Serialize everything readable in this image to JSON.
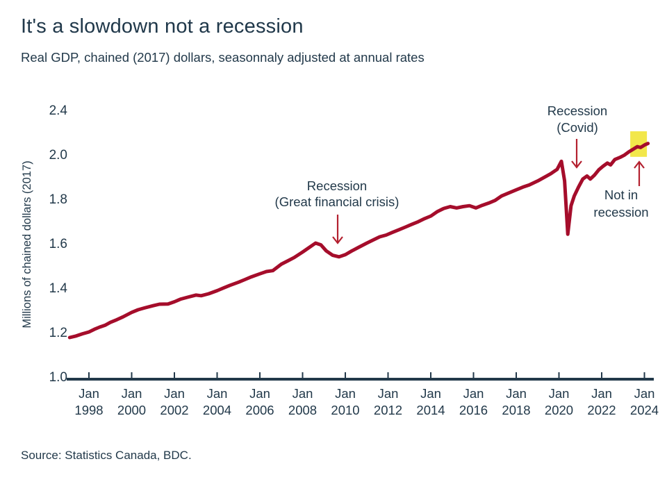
{
  "header": {
    "title": "It's a slowdown not a recession",
    "subtitle": "Real GDP, chained (2017) dollars, seasonnaly adjusted at annual rates"
  },
  "footer": {
    "source": "Source: Statistics Canada, BDC."
  },
  "colors": {
    "text": "#22394a",
    "line": "#a50d2b",
    "arrow": "#b3202f",
    "highlight": "#f2e74b",
    "axis": "#22394a"
  },
  "chart_data": {
    "type": "line",
    "title": "It's a slowdown not a recession",
    "subtitle": "Real GDP, chained (2017) dollars, seasonnaly adjusted at annual rates",
    "ylabel": "Millions of chained dollars (2017)",
    "xlabel": "",
    "grid": false,
    "legend": "none",
    "y_ticks": [
      1.0,
      1.2,
      1.4,
      1.6,
      1.8,
      2.0,
      2.4
    ],
    "y_tick_labels": [
      "1.0",
      "1.2",
      "1.4",
      "1.6",
      "1.8",
      "2.0",
      "2.4"
    ],
    "y_axis_note": "tick labels equally spaced on chart; 2.4 occupies the slot above 2.0",
    "x_ticks": [
      "Jan 1998",
      "Jan 2000",
      "Jan 2002",
      "Jan 2004",
      "Jan 2006",
      "Jan 2008",
      "Jan 2010",
      "Jan 2012",
      "Jan 2014",
      "Jan 2016",
      "Jan 2018",
      "Jan 2020",
      "Jan 2022",
      "Jan 2024"
    ],
    "x_range_years": [
      1997.1,
      2024.15
    ],
    "series": [
      {
        "name": "Real GDP",
        "points": [
          [
            1997.1,
            1.175
          ],
          [
            1997.4,
            1.182
          ],
          [
            1997.7,
            1.192
          ],
          [
            1998.0,
            1.2
          ],
          [
            1998.25,
            1.212
          ],
          [
            1998.5,
            1.222
          ],
          [
            1998.75,
            1.23
          ],
          [
            1999.0,
            1.243
          ],
          [
            1999.3,
            1.255
          ],
          [
            1999.6,
            1.268
          ],
          [
            2000.0,
            1.288
          ],
          [
            2000.3,
            1.3
          ],
          [
            2000.6,
            1.308
          ],
          [
            2001.0,
            1.318
          ],
          [
            2001.3,
            1.325
          ],
          [
            2001.7,
            1.326
          ],
          [
            2002.0,
            1.336
          ],
          [
            2002.3,
            1.348
          ],
          [
            2002.6,
            1.356
          ],
          [
            2003.0,
            1.366
          ],
          [
            2003.25,
            1.363
          ],
          [
            2003.6,
            1.372
          ],
          [
            2004.0,
            1.386
          ],
          [
            2004.3,
            1.398
          ],
          [
            2004.6,
            1.41
          ],
          [
            2005.0,
            1.424
          ],
          [
            2005.3,
            1.436
          ],
          [
            2005.6,
            1.448
          ],
          [
            2006.0,
            1.462
          ],
          [
            2006.3,
            1.472
          ],
          [
            2006.6,
            1.476
          ],
          [
            2007.0,
            1.505
          ],
          [
            2007.3,
            1.52
          ],
          [
            2007.6,
            1.535
          ],
          [
            2008.0,
            1.56
          ],
          [
            2008.3,
            1.58
          ],
          [
            2008.6,
            1.6
          ],
          [
            2008.85,
            1.592
          ],
          [
            2009.1,
            1.565
          ],
          [
            2009.4,
            1.545
          ],
          [
            2009.7,
            1.538
          ],
          [
            2010.0,
            1.548
          ],
          [
            2010.3,
            1.565
          ],
          [
            2010.6,
            1.58
          ],
          [
            2011.0,
            1.6
          ],
          [
            2011.3,
            1.614
          ],
          [
            2011.6,
            1.628
          ],
          [
            2011.9,
            1.636
          ],
          [
            2012.2,
            1.648
          ],
          [
            2012.5,
            1.66
          ],
          [
            2012.8,
            1.672
          ],
          [
            2013.1,
            1.684
          ],
          [
            2013.4,
            1.696
          ],
          [
            2013.7,
            1.71
          ],
          [
            2014.0,
            1.722
          ],
          [
            2014.3,
            1.742
          ],
          [
            2014.6,
            1.756
          ],
          [
            2014.9,
            1.764
          ],
          [
            2015.2,
            1.758
          ],
          [
            2015.5,
            1.764
          ],
          [
            2015.8,
            1.768
          ],
          [
            2016.1,
            1.758
          ],
          [
            2016.4,
            1.77
          ],
          [
            2016.7,
            1.78
          ],
          [
            2017.0,
            1.792
          ],
          [
            2017.3,
            1.812
          ],
          [
            2017.6,
            1.824
          ],
          [
            2018.0,
            1.84
          ],
          [
            2018.3,
            1.852
          ],
          [
            2018.6,
            1.862
          ],
          [
            2019.0,
            1.88
          ],
          [
            2019.3,
            1.896
          ],
          [
            2019.6,
            1.912
          ],
          [
            2019.9,
            1.932
          ],
          [
            2020.1,
            1.968
          ],
          [
            2020.25,
            1.88
          ],
          [
            2020.4,
            1.64
          ],
          [
            2020.55,
            1.768
          ],
          [
            2020.7,
            1.812
          ],
          [
            2020.9,
            1.852
          ],
          [
            2021.1,
            1.888
          ],
          [
            2021.3,
            1.902
          ],
          [
            2021.45,
            1.888
          ],
          [
            2021.65,
            1.906
          ],
          [
            2021.85,
            1.93
          ],
          [
            2022.05,
            1.946
          ],
          [
            2022.25,
            1.96
          ],
          [
            2022.4,
            1.952
          ],
          [
            2022.6,
            1.976
          ],
          [
            2022.85,
            1.986
          ],
          [
            2023.05,
            1.996
          ],
          [
            2023.25,
            2.01
          ],
          [
            2023.45,
            2.022
          ],
          [
            2023.65,
            2.034
          ],
          [
            2023.8,
            2.03
          ],
          [
            2024.0,
            2.042
          ],
          [
            2024.15,
            2.048
          ]
        ]
      }
    ],
    "annotations": {
      "gfc": {
        "line1": "Recession",
        "line2": "(Great financial crisis)",
        "arrow": "down",
        "points_to_year": 2009.5
      },
      "covid": {
        "line1": "Recession",
        "line2": "(Covid)",
        "arrow": "down",
        "points_to_year": 2020.4
      },
      "notin": {
        "line1": "Not in",
        "line2": "recession",
        "arrow": "up",
        "points_to_year": 2023.7
      }
    },
    "highlight": {
      "year_start": 2023.32,
      "year_end": 2024.1,
      "value_bottom": 1.988,
      "value_top": 2.103,
      "color": "#f2e74b"
    },
    "source": "Source: Statistics Canada, BDC."
  }
}
